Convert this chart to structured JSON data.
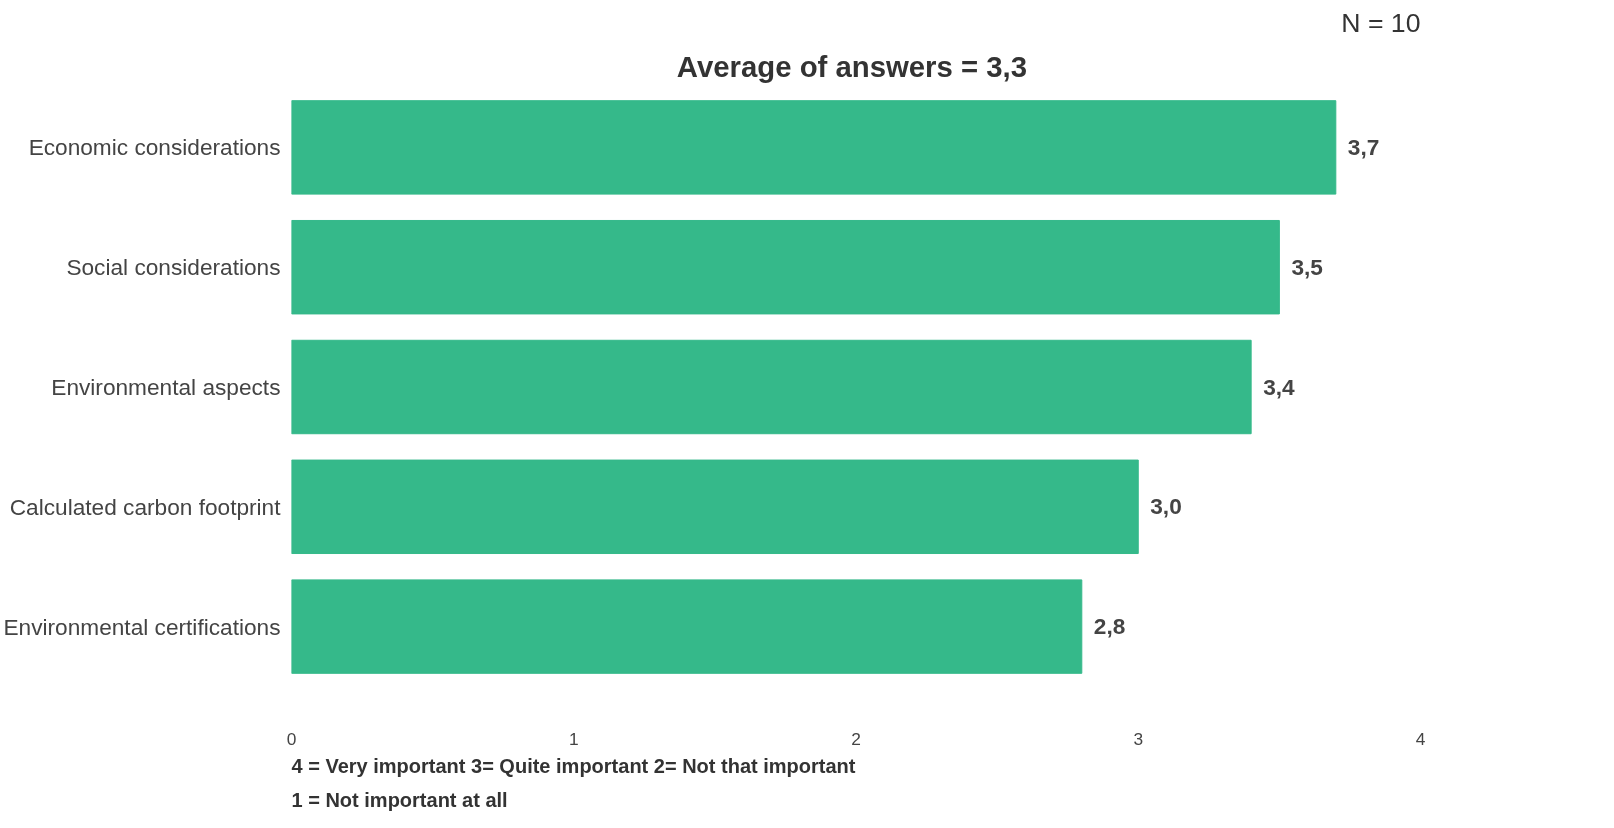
{
  "chart_data": {
    "type": "bar",
    "orientation": "horizontal",
    "title": "Average of answers =  3,3",
    "categories": [
      "Economic considerations",
      "Social considerations",
      "Environmental aspects",
      "Calculated carbon footprint",
      "Environmental certifications"
    ],
    "values": [
      3.7,
      3.5,
      3.4,
      3.0,
      2.8
    ],
    "value_labels": [
      "3,7",
      "3,5",
      "3,4",
      "3,0",
      "2,8"
    ],
    "color": "#35b98a",
    "xlim": [
      0,
      4
    ],
    "xticks": [
      0,
      1,
      2,
      3,
      4
    ],
    "grid": false,
    "annotations": [
      "N = 10",
      "4 = Very important 3= Quite important  2= Not that important",
      "1 = Not important at all"
    ]
  }
}
